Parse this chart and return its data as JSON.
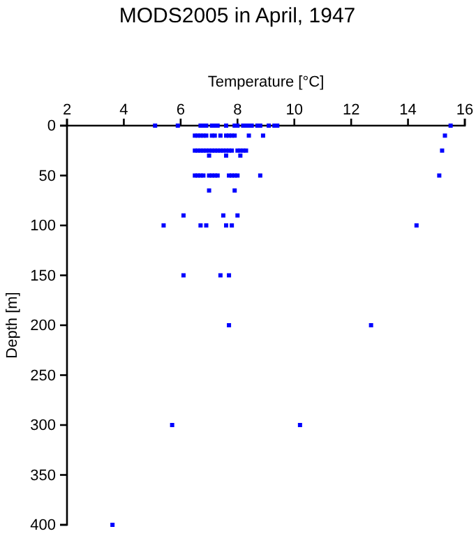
{
  "chart_data": {
    "type": "scatter",
    "title": "MODS2005 in April, 1947",
    "xlabel": "Temperature [°C]",
    "ylabel": "Depth [m]",
    "xlim": [
      2,
      16
    ],
    "xticks": [
      2,
      4,
      6,
      8,
      10,
      12,
      14,
      16
    ],
    "ylim": [
      400,
      0
    ],
    "yticks": [
      0,
      50,
      100,
      150,
      200,
      250,
      300,
      350,
      400
    ],
    "grid": false,
    "marker": "square",
    "series": [
      {
        "color": "#0000ff",
        "x": [
          5.1,
          5.9,
          6.7,
          6.8,
          6.9,
          7.1,
          7.2,
          7.3,
          7.6,
          7.9,
          8.0,
          8.2,
          8.3,
          8.4,
          8.5,
          8.7,
          8.8,
          9.1,
          9.3,
          9.4,
          15.5,
          6.5,
          6.6,
          6.7,
          6.8,
          6.9,
          7.1,
          7.2,
          7.4,
          7.6,
          7.7,
          7.8,
          7.9,
          8.4,
          8.9,
          15.3,
          6.5,
          6.6,
          6.7,
          6.8,
          6.9,
          7.0,
          7.1,
          7.2,
          7.3,
          7.4,
          7.5,
          7.6,
          7.7,
          7.8,
          8.0,
          8.1,
          8.2,
          8.3,
          15.2,
          7.0,
          7.6,
          8.1,
          6.5,
          6.6,
          6.7,
          6.8,
          7.0,
          7.1,
          7.2,
          7.3,
          7.7,
          7.8,
          7.9,
          8.0,
          8.8,
          15.1,
          7.0,
          7.9,
          6.1,
          7.5,
          8.0,
          5.4,
          6.7,
          6.9,
          7.6,
          7.8,
          14.3,
          6.1,
          7.4,
          7.7,
          7.7,
          12.7,
          5.7,
          10.2,
          3.6
        ],
        "values": [
          0,
          0,
          0,
          0,
          0,
          0,
          0,
          0,
          0,
          0,
          0,
          0,
          0,
          0,
          0,
          0,
          0,
          0,
          0,
          0,
          0,
          10,
          10,
          10,
          10,
          10,
          10,
          10,
          10,
          10,
          10,
          10,
          10,
          10,
          10,
          10,
          25,
          25,
          25,
          25,
          25,
          25,
          25,
          25,
          25,
          25,
          25,
          25,
          25,
          25,
          25,
          25,
          25,
          25,
          25,
          30,
          30,
          30,
          50,
          50,
          50,
          50,
          50,
          50,
          50,
          50,
          50,
          50,
          50,
          50,
          50,
          50,
          65,
          65,
          90,
          90,
          90,
          100,
          100,
          100,
          100,
          100,
          100,
          150,
          150,
          150,
          200,
          200,
          300,
          300,
          400
        ]
      }
    ]
  }
}
